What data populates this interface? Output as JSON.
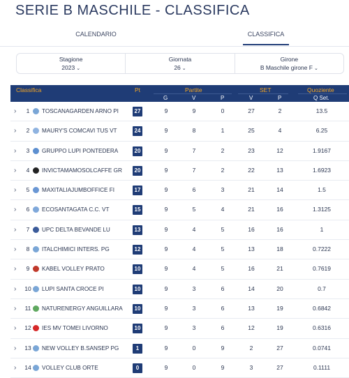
{
  "page": {
    "title": "SERIE B MASCHILE - CLASSIFICA"
  },
  "tabs": [
    {
      "label": "CALENDARIO"
    },
    {
      "label": "CLASSIFICA"
    }
  ],
  "filters": [
    {
      "label": "Stagione",
      "value": "2023"
    },
    {
      "label": "Giornata",
      "value": "26"
    },
    {
      "label": "Girone",
      "value": "B Maschile girone F"
    }
  ],
  "table": {
    "headers": {
      "classifica": "Classifica",
      "pt": "Pt",
      "partite": "Partite",
      "set": "SET",
      "quoziente": "Quoziente",
      "g": "G",
      "v": "V",
      "p": "P",
      "set_v": "V",
      "set_p": "P",
      "q_set": "Q Set."
    },
    "rows": [
      {
        "pos": "1",
        "team": "TOSCANAGARDEN ARNO PI",
        "pt": "27",
        "g": "9",
        "v": "9",
        "p": "0",
        "sv": "27",
        "sp": "2",
        "q": "13.5"
      },
      {
        "pos": "2",
        "team": "MAURY'S COMCAVI TUS VT",
        "pt": "24",
        "g": "9",
        "v": "8",
        "p": "1",
        "sv": "25",
        "sp": "4",
        "q": "6.25"
      },
      {
        "pos": "3",
        "team": "GRUPPO LUPI PONTEDERA",
        "pt": "20",
        "g": "9",
        "v": "7",
        "p": "2",
        "sv": "23",
        "sp": "12",
        "q": "1.9167"
      },
      {
        "pos": "4",
        "team": "INVICTAMAMOSOLCAFFE GR",
        "pt": "20",
        "g": "9",
        "v": "7",
        "p": "2",
        "sv": "22",
        "sp": "13",
        "q": "1.6923"
      },
      {
        "pos": "5",
        "team": "MAXITALIAJUMBOFFICE FI",
        "pt": "17",
        "g": "9",
        "v": "6",
        "p": "3",
        "sv": "21",
        "sp": "14",
        "q": "1.5"
      },
      {
        "pos": "6",
        "team": "ECOSANTAGATA C.C. VT",
        "pt": "15",
        "g": "9",
        "v": "5",
        "p": "4",
        "sv": "21",
        "sp": "16",
        "q": "1.3125"
      },
      {
        "pos": "7",
        "team": "UPC DELTA BEVANDE LU",
        "pt": "13",
        "g": "9",
        "v": "4",
        "p": "5",
        "sv": "16",
        "sp": "16",
        "q": "1"
      },
      {
        "pos": "8",
        "team": "ITALCHIMICI INTERS. PG",
        "pt": "12",
        "g": "9",
        "v": "4",
        "p": "5",
        "sv": "13",
        "sp": "18",
        "q": "0.7222"
      },
      {
        "pos": "9",
        "team": "KABEL VOLLEY PRATO",
        "pt": "10",
        "g": "9",
        "v": "4",
        "p": "5",
        "sv": "16",
        "sp": "21",
        "q": "0.7619"
      },
      {
        "pos": "10",
        "team": "LUPI SANTA CROCE PI",
        "pt": "10",
        "g": "9",
        "v": "3",
        "p": "6",
        "sv": "14",
        "sp": "20",
        "q": "0.7"
      },
      {
        "pos": "11",
        "team": "NATURENERGY ANGUILLARA",
        "pt": "10",
        "g": "9",
        "v": "3",
        "p": "6",
        "sv": "13",
        "sp": "19",
        "q": "0.6842"
      },
      {
        "pos": "12",
        "team": "IES MV TOMEI LIVORNO",
        "pt": "10",
        "g": "9",
        "v": "3",
        "p": "6",
        "sv": "12",
        "sp": "19",
        "q": "0.6316"
      },
      {
        "pos": "13",
        "team": "NEW VOLLEY B.SANSEP PG",
        "pt": "1",
        "g": "9",
        "v": "0",
        "p": "9",
        "sv": "2",
        "sp": "27",
        "q": "0.0741"
      },
      {
        "pos": "14",
        "team": "VOLLEY CLUB ORTE",
        "pt": "0",
        "g": "9",
        "v": "0",
        "p": "9",
        "sv": "3",
        "sp": "27",
        "q": "0.1111"
      }
    ]
  },
  "colors": {
    "header_bg": "#1f3c76",
    "accent": "#f5a623",
    "pt_badge": "#1f3c76"
  }
}
